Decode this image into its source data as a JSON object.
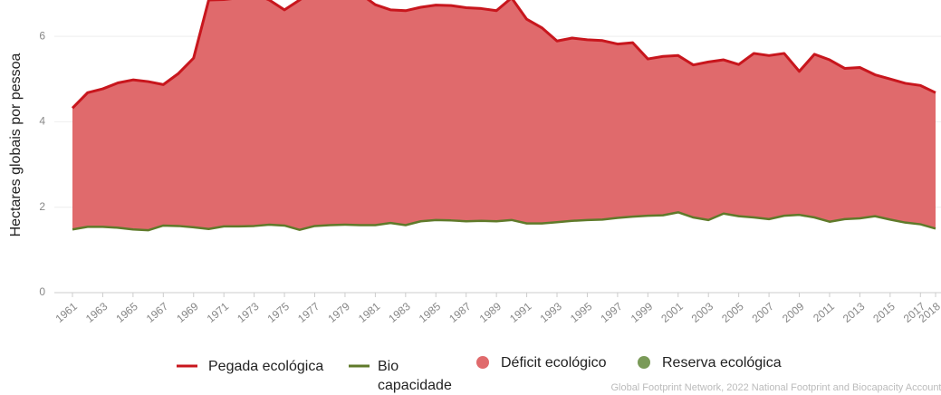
{
  "chart_data": {
    "type": "area",
    "y_label": "Hectares globais por pessoa",
    "source": "Global Footprint Network, 2022 National Footprint and Biocapacity Accounts",
    "x": [
      1961,
      1962,
      1963,
      1964,
      1965,
      1966,
      1967,
      1968,
      1969,
      1970,
      1971,
      1972,
      1973,
      1974,
      1975,
      1976,
      1977,
      1978,
      1979,
      1980,
      1981,
      1982,
      1983,
      1984,
      1985,
      1986,
      1987,
      1988,
      1989,
      1990,
      1991,
      1992,
      1993,
      1994,
      1995,
      1996,
      1997,
      1998,
      1999,
      2000,
      2001,
      2002,
      2003,
      2004,
      2005,
      2006,
      2007,
      2008,
      2009,
      2010,
      2011,
      2012,
      2013,
      2014,
      2015,
      2016,
      2017,
      2018
    ],
    "xlim": [
      1961,
      2018
    ],
    "xticks": [
      1961,
      1963,
      1965,
      1967,
      1969,
      1971,
      1973,
      1975,
      1977,
      1979,
      1981,
      1983,
      1985,
      1987,
      1989,
      1991,
      1993,
      1995,
      1997,
      1999,
      2001,
      2003,
      2005,
      2007,
      2009,
      2011,
      2013,
      2015,
      2017,
      2018
    ],
    "ylim": [
      0,
      6.85
    ],
    "yticks": [
      0,
      2,
      4,
      6
    ],
    "grid": true,
    "series": [
      {
        "name": "Pegada ecológica",
        "color": "#c8161d",
        "values": [
          4.32,
          4.68,
          4.77,
          4.91,
          4.98,
          4.94,
          4.87,
          5.13,
          5.49,
          6.85,
          6.86,
          6.9,
          7.0,
          6.85,
          6.62,
          6.85,
          7.1,
          7.2,
          7.1,
          7.0,
          6.74,
          6.62,
          6.6,
          6.68,
          6.73,
          6.72,
          6.67,
          6.65,
          6.6,
          6.9,
          6.4,
          6.2,
          5.89,
          5.96,
          5.92,
          5.9,
          5.82,
          5.85,
          5.47,
          5.53,
          5.55,
          5.33,
          5.4,
          5.45,
          5.34,
          5.6,
          5.55,
          5.6,
          5.18,
          5.58,
          5.45,
          5.25,
          5.27,
          5.1,
          5.0,
          4.9,
          4.85,
          4.68
        ]
      },
      {
        "name": "Bio capacidade",
        "color": "#5f7a2a",
        "values": [
          1.48,
          1.54,
          1.54,
          1.52,
          1.48,
          1.46,
          1.57,
          1.56,
          1.53,
          1.49,
          1.55,
          1.55,
          1.56,
          1.59,
          1.57,
          1.47,
          1.56,
          1.58,
          1.59,
          1.58,
          1.58,
          1.63,
          1.58,
          1.67,
          1.7,
          1.69,
          1.67,
          1.68,
          1.67,
          1.7,
          1.62,
          1.62,
          1.65,
          1.68,
          1.7,
          1.71,
          1.75,
          1.78,
          1.8,
          1.81,
          1.88,
          1.76,
          1.7,
          1.85,
          1.79,
          1.76,
          1.72,
          1.8,
          1.82,
          1.76,
          1.66,
          1.72,
          1.74,
          1.79,
          1.71,
          1.64,
          1.6,
          1.5
        ]
      }
    ],
    "areas": [
      {
        "name": "Déficit ecológico",
        "color": "#e06a6c"
      },
      {
        "name": "Reserva ecológica",
        "color": "#7a9a58"
      }
    ]
  }
}
